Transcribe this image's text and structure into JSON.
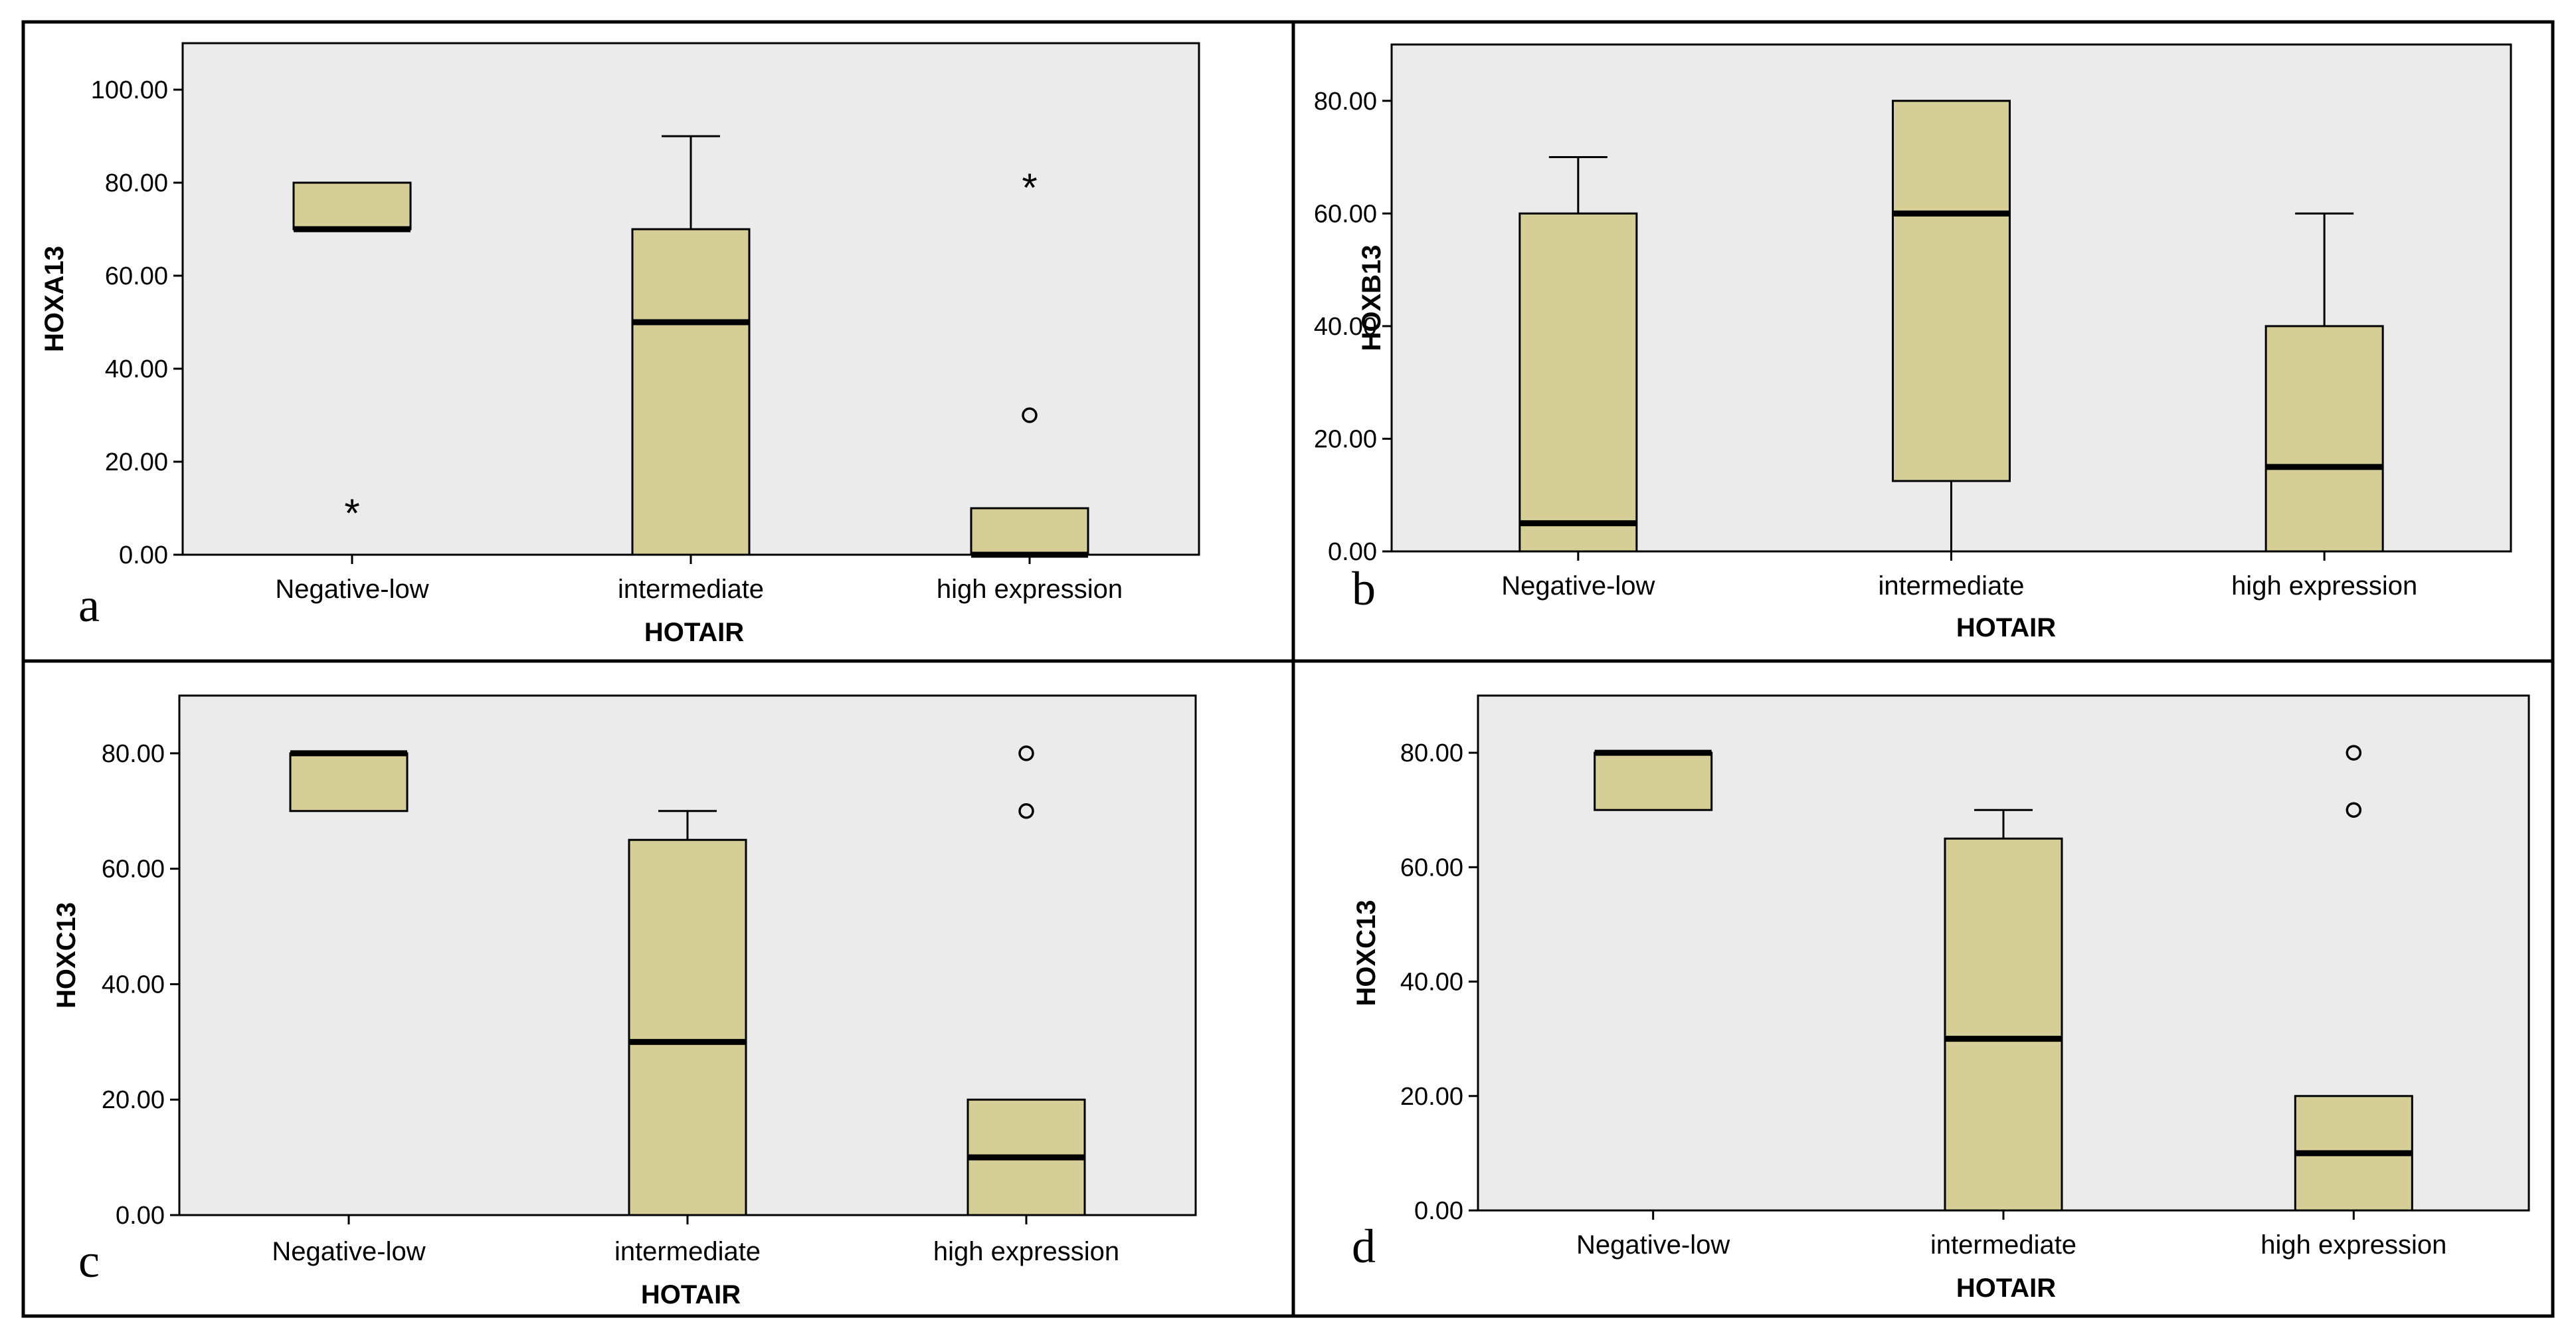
{
  "chart_data": [
    {
      "type": "box",
      "panel_label": "a",
      "xlabel": "HOTAIR",
      "ylabel": "HOXA13",
      "ylim": [
        0,
        110
      ],
      "yticks": [
        0,
        20,
        40,
        60,
        80,
        100
      ],
      "ytick_labels": [
        "0.00",
        "20.00",
        "40.00",
        "60.00",
        "80.00",
        "100.00"
      ],
      "categories": [
        "Negative-low",
        "intermediate",
        "high expression"
      ],
      "boxes": [
        {
          "q1": 70,
          "median": 70,
          "q3": 80,
          "whisker_low": 70,
          "whisker_high": 80,
          "outliers": [],
          "extremes": [
            10
          ]
        },
        {
          "q1": 0,
          "median": 50,
          "q3": 70,
          "whisker_low": 0,
          "whisker_high": 90,
          "outliers": [],
          "extremes": []
        },
        {
          "q1": 0,
          "median": 0,
          "q3": 10,
          "whisker_low": 0,
          "whisker_high": 10,
          "outliers": [
            30
          ],
          "extremes": [
            80
          ]
        }
      ]
    },
    {
      "type": "box",
      "panel_label": "b",
      "xlabel": "HOTAIR",
      "ylabel": "HOXB13",
      "ylim": [
        0,
        90
      ],
      "yticks": [
        0,
        20,
        40,
        60,
        80
      ],
      "ytick_labels": [
        "0.00",
        "20.00",
        "40.00",
        "60.00",
        "80.00"
      ],
      "categories": [
        "Negative-low",
        "intermediate",
        "high expression"
      ],
      "boxes": [
        {
          "q1": 0,
          "median": 5,
          "q3": 60,
          "whisker_low": 0,
          "whisker_high": 70,
          "outliers": [],
          "extremes": []
        },
        {
          "q1": 12.5,
          "median": 60,
          "q3": 80,
          "whisker_low": 0,
          "whisker_high": 80,
          "outliers": [],
          "extremes": []
        },
        {
          "q1": 0,
          "median": 15,
          "q3": 40,
          "whisker_low": 0,
          "whisker_high": 60,
          "outliers": [],
          "extremes": []
        }
      ]
    },
    {
      "type": "box",
      "panel_label": "c",
      "xlabel": "HOTAIR",
      "ylabel": "HOXC13",
      "ylim": [
        0,
        90
      ],
      "yticks": [
        0,
        20,
        40,
        60,
        80
      ],
      "ytick_labels": [
        "0.00",
        "20.00",
        "40.00",
        "60.00",
        "80.00"
      ],
      "categories": [
        "Negative-low",
        "intermediate",
        "high expression"
      ],
      "boxes": [
        {
          "q1": 70,
          "median": 80,
          "q3": 80,
          "whisker_low": 70,
          "whisker_high": 80,
          "outliers": [],
          "extremes": []
        },
        {
          "q1": 0,
          "median": 30,
          "q3": 65,
          "whisker_low": 0,
          "whisker_high": 70,
          "outliers": [],
          "extremes": []
        },
        {
          "q1": 0,
          "median": 10,
          "q3": 20,
          "whisker_low": 0,
          "whisker_high": 20,
          "outliers": [
            70,
            80
          ],
          "extremes": []
        }
      ]
    },
    {
      "type": "box",
      "panel_label": "d",
      "xlabel": "HOTAIR",
      "ylabel": "HOXC13",
      "ylim": [
        0,
        90
      ],
      "yticks": [
        0,
        20,
        40,
        60,
        80
      ],
      "ytick_labels": [
        "0.00",
        "20.00",
        "40.00",
        "60.00",
        "80.00"
      ],
      "categories": [
        "Negative-low",
        "intermediate",
        "high expression"
      ],
      "boxes": [
        {
          "q1": 70,
          "median": 80,
          "q3": 80,
          "whisker_low": 70,
          "whisker_high": 80,
          "outliers": [],
          "extremes": []
        },
        {
          "q1": 0,
          "median": 30,
          "q3": 65,
          "whisker_low": 0,
          "whisker_high": 70,
          "outliers": [],
          "extremes": []
        },
        {
          "q1": 0,
          "median": 10,
          "q3": 20,
          "whisker_low": 0,
          "whisker_high": 20,
          "outliers": [
            70,
            80
          ],
          "extremes": []
        }
      ]
    }
  ],
  "colors": {
    "box_fill": "#d6ce97",
    "plot_bg": "#ebebeb",
    "line": "#000000"
  }
}
